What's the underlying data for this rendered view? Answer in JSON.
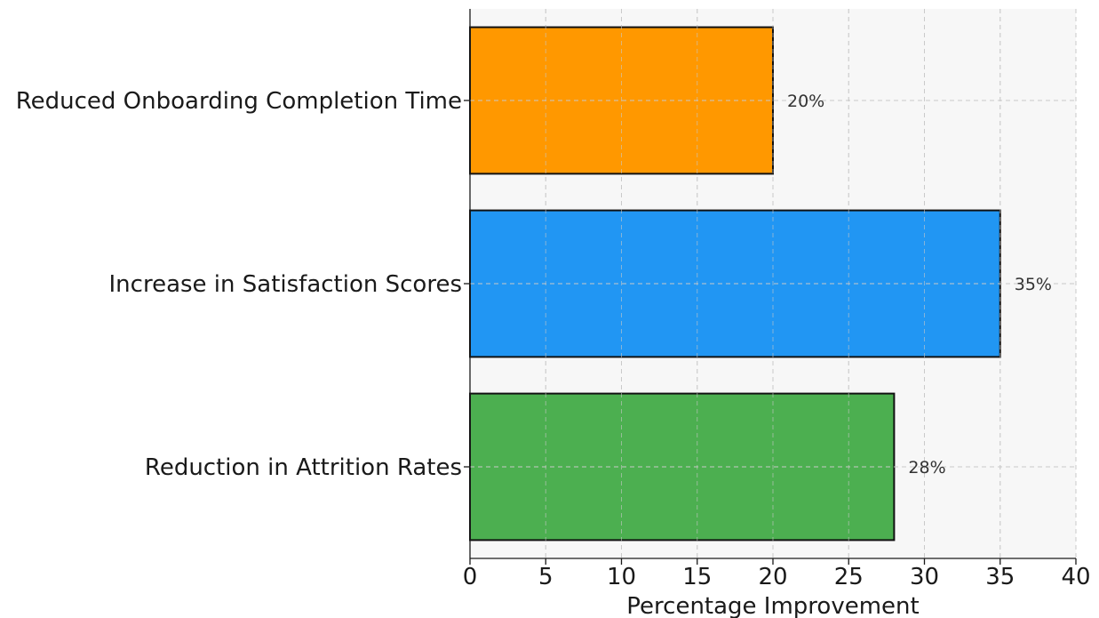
{
  "chart_data": {
    "type": "bar",
    "orientation": "horizontal",
    "categories": [
      "Reduced Onboarding Completion Time",
      "Increase in Satisfaction Scores",
      "Reduction in Attrition Rates"
    ],
    "values": [
      20,
      35,
      28
    ],
    "value_labels": [
      "20%",
      "35%",
      "28%"
    ],
    "colors": [
      "#FF9800",
      "#2196F3",
      "#4CAF50"
    ],
    "title": "",
    "xlabel": "Percentage Improvement",
    "ylabel": "",
    "xlim": [
      0,
      40
    ],
    "xticks": [
      0,
      5,
      10,
      15,
      20,
      25,
      30,
      35,
      40
    ],
    "grid": true,
    "legend": "none",
    "background_color": "#F7F7F7",
    "edge_color": "#111111"
  }
}
